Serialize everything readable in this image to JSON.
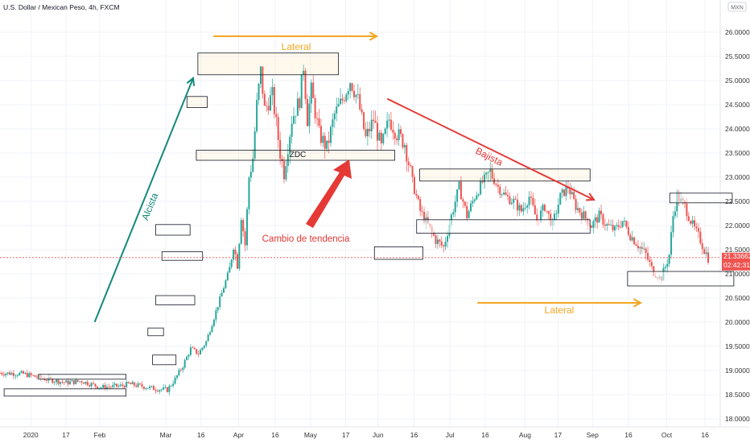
{
  "chart_data": {
    "type": "candlestick",
    "title": "U.S. Dollar / Mexican Peso, 4h, FXCM",
    "symbol_badge": "MXN",
    "ylim": [
      18.0,
      26.5
    ],
    "y_ticks": [
      "26.00000",
      "25.50000",
      "25.00000",
      "24.50000",
      "24.00000",
      "23.50000",
      "23.00000",
      "22.50000",
      "22.00000",
      "21.50000",
      "21.00000",
      "20.50000",
      "20.00000",
      "19.50000",
      "19.00000",
      "18.50000",
      "18.00000"
    ],
    "x_ticks": [
      "2020",
      "17",
      "Feb",
      "Mar",
      "16",
      "Apr",
      "16",
      "May",
      "17",
      "Jun",
      "16",
      "Jul",
      "16",
      "Aug",
      "17",
      "Sep",
      "16",
      "Oct",
      "16"
    ],
    "price_label": {
      "value": "21.33662",
      "countdown": "02:42:31"
    },
    "colors": {
      "up": "#26a69a",
      "down": "#ef5350",
      "uptrend": "#13897b",
      "downtrend": "#e53935",
      "lateral": "#f5a623",
      "annotation_red": "#e53935",
      "price_line": "#ef5350"
    },
    "series": [
      {
        "name": "",
        "price_path": [
          [
            0,
            18.95
          ],
          [
            6,
            18.93
          ],
          [
            12,
            18.82
          ],
          [
            17,
            18.75
          ],
          [
            21,
            18.78
          ],
          [
            26,
            18.65
          ],
          [
            31,
            18.68
          ],
          [
            33,
            18.72
          ],
          [
            36,
            18.68
          ],
          [
            40,
            18.62
          ],
          [
            43,
            18.6
          ],
          [
            45,
            18.82
          ],
          [
            47,
            19.1
          ],
          [
            49,
            19.45
          ],
          [
            51,
            19.35
          ],
          [
            53,
            19.6
          ],
          [
            55,
            20.1
          ],
          [
            57,
            20.6
          ],
          [
            59,
            21.1
          ],
          [
            60,
            21.6
          ],
          [
            61,
            21.2
          ],
          [
            62,
            22.2
          ],
          [
            63,
            21.6
          ],
          [
            64,
            23.0
          ],
          [
            65,
            23.4
          ],
          [
            66,
            24.5
          ],
          [
            67,
            25.2
          ],
          [
            68,
            24.4
          ],
          [
            70,
            24.7
          ],
          [
            72,
            23.5
          ],
          [
            73,
            23.1
          ],
          [
            75,
            24.2
          ],
          [
            77,
            24.6
          ],
          [
            78,
            25.3
          ],
          [
            79,
            24.2
          ],
          [
            80,
            24.8
          ],
          [
            82,
            23.9
          ],
          [
            84,
            23.6
          ],
          [
            86,
            24.3
          ],
          [
            88,
            24.6
          ],
          [
            90,
            25.0
          ],
          [
            92,
            24.6
          ],
          [
            94,
            23.8
          ],
          [
            96,
            24.2
          ],
          [
            98,
            23.6
          ],
          [
            100,
            24.2
          ],
          [
            102,
            23.9
          ],
          [
            104,
            23.7
          ],
          [
            106,
            22.9
          ],
          [
            108,
            22.3
          ],
          [
            110,
            22.0
          ],
          [
            112,
            21.7
          ],
          [
            114,
            21.55
          ],
          [
            116,
            22.2
          ],
          [
            118,
            22.8
          ],
          [
            120,
            22.2
          ],
          [
            122,
            22.6
          ],
          [
            124,
            22.9
          ],
          [
            126,
            23.1
          ],
          [
            128,
            22.8
          ],
          [
            130,
            22.6
          ],
          [
            132,
            22.5
          ],
          [
            134,
            22.3
          ],
          [
            136,
            22.6
          ],
          [
            138,
            22.1
          ],
          [
            140,
            22.4
          ],
          [
            142,
            22.0
          ],
          [
            144,
            22.6
          ],
          [
            146,
            22.8
          ],
          [
            148,
            22.4
          ],
          [
            150,
            22.2
          ],
          [
            152,
            22.0
          ],
          [
            154,
            22.2
          ],
          [
            156,
            22.0
          ],
          [
            158,
            21.9
          ],
          [
            160,
            22.1
          ],
          [
            162,
            21.8
          ],
          [
            164,
            21.6
          ],
          [
            166,
            21.4
          ],
          [
            168,
            21.0
          ],
          [
            170,
            20.9
          ],
          [
            172,
            21.4
          ],
          [
            173,
            22.2
          ],
          [
            174,
            22.6
          ],
          [
            176,
            22.4
          ],
          [
            178,
            22.0
          ],
          [
            180,
            21.7
          ],
          [
            181,
            21.5
          ],
          [
            182,
            21.34
          ]
        ]
      }
    ],
    "annotations": {
      "lateral_top": "Lateral",
      "lateral_bottom": "Lateral",
      "alcista": "Alcista",
      "bajista": "Bajista",
      "zdc": "ZDC",
      "cambio": "Cambio de tendencia"
    }
  }
}
